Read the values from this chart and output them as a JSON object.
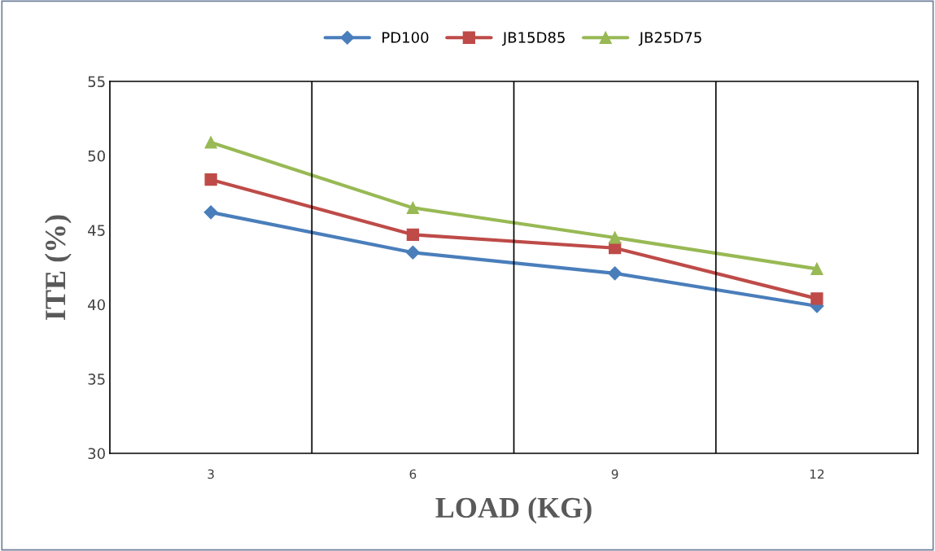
{
  "chart_data": {
    "type": "line",
    "xlabel": "LOAD (KG)",
    "ylabel": "ITE (%)",
    "categories": [
      "3",
      "6",
      "9",
      "12"
    ],
    "series": [
      {
        "name": "PD100",
        "color": "#4a7ebb",
        "marker": "diamond",
        "values": [
          46.2,
          43.5,
          42.1,
          39.9
        ]
      },
      {
        "name": "JB15D85",
        "color": "#be4b48",
        "marker": "square",
        "values": [
          48.4,
          44.7,
          43.8,
          40.4
        ]
      },
      {
        "name": "JB25D75",
        "color": "#98b954",
        "marker": "triangle",
        "values": [
          50.9,
          46.5,
          44.5,
          42.4
        ]
      }
    ],
    "ylim": [
      30,
      55
    ],
    "yticks": [
      30,
      35,
      40,
      45,
      50,
      55
    ],
    "grid": "x",
    "legend": "top",
    "line_style": "solid"
  }
}
